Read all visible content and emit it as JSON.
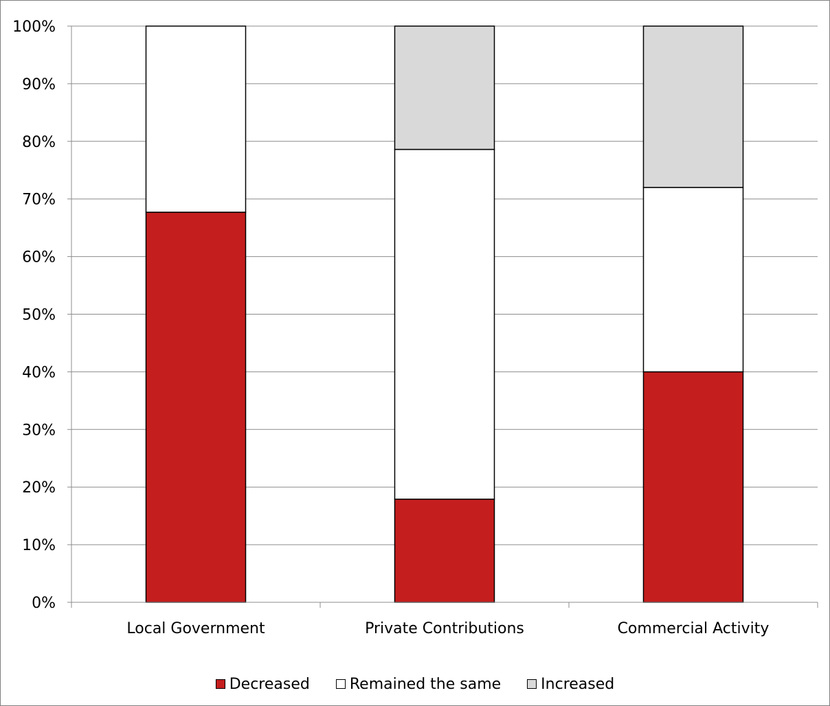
{
  "chart_data": {
    "type": "bar",
    "stacked": true,
    "percent_stacked": true,
    "categories": [
      "Local Government",
      "Private Contributions",
      "Commercial Activity"
    ],
    "series": [
      {
        "name": "Decreased",
        "values": [
          67.7,
          17.9,
          40.0
        ],
        "color": "#C41E1E"
      },
      {
        "name": "Remained the same",
        "values": [
          32.3,
          60.7,
          32.0
        ],
        "color": "#FFFFFF"
      },
      {
        "name": "Increased",
        "values": [
          0.0,
          21.4,
          28.0
        ],
        "color": "#D9D9D9"
      }
    ],
    "yticks": [
      "0%",
      "10%",
      "20%",
      "30%",
      "40%",
      "50%",
      "60%",
      "70%",
      "80%",
      "90%",
      "100%"
    ],
    "ylim": [
      0,
      100
    ],
    "grid": true,
    "legend_position": "bottom",
    "title": "",
    "xlabel": "",
    "ylabel": ""
  }
}
